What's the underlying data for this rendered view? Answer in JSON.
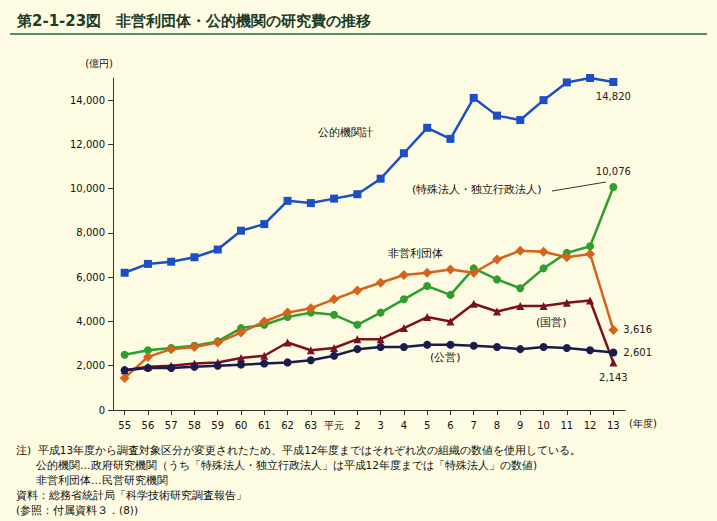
{
  "chart_data": {
    "type": "line",
    "title": "第2-1-23図　非営利団体・公的機関の研究費の推移",
    "y_label": "(億円)",
    "x_label": "(年度)",
    "categories": [
      "55",
      "56",
      "57",
      "58",
      "59",
      "60",
      "61",
      "62",
      "63",
      "平元",
      "2",
      "3",
      "4",
      "5",
      "6",
      "7",
      "8",
      "9",
      "10",
      "11",
      "12",
      "13"
    ],
    "series": [
      {
        "name": "公的機関計",
        "color": "#1c4fc4",
        "marker": "square",
        "values": [
          6200,
          6600,
          6700,
          6900,
          7250,
          8100,
          8400,
          9450,
          9350,
          9550,
          9750,
          10450,
          11600,
          12750,
          12250,
          14100,
          13300,
          13100,
          14000,
          14800,
          15000,
          14820
        ]
      },
      {
        "name": "(特殊法人・独立行政法人)",
        "color": "#2e9e2e",
        "marker": "circle",
        "values": [
          2500,
          2700,
          2800,
          2900,
          3100,
          3700,
          3850,
          4200,
          4400,
          4300,
          3850,
          4400,
          5000,
          5600,
          5200,
          6400,
          5900,
          5500,
          6400,
          7100,
          7400,
          10076
        ]
      },
      {
        "name": "非営利団体",
        "color": "#d4631c",
        "marker": "diamond",
        "values": [
          1450,
          2400,
          2750,
          2850,
          3050,
          3500,
          4000,
          4400,
          4600,
          5000,
          5400,
          5750,
          6100,
          6200,
          6350,
          6200,
          6800,
          7200,
          7150,
          6900,
          7050,
          3616
        ]
      },
      {
        "name": "(国営)",
        "color": "#7a1020",
        "marker": "triangle",
        "values": [
          1800,
          1950,
          2000,
          2100,
          2150,
          2350,
          2450,
          3050,
          2700,
          2800,
          3200,
          3200,
          3700,
          4200,
          4000,
          4800,
          4450,
          4700,
          4700,
          4850,
          4950,
          2143
        ]
      },
      {
        "name": "(公営)",
        "color": "#1b1b4d",
        "marker": "circle",
        "values": [
          1800,
          1900,
          1900,
          1950,
          2000,
          2050,
          2100,
          2150,
          2250,
          2450,
          2750,
          2850,
          2850,
          2950,
          2950,
          2900,
          2850,
          2750,
          2850,
          2800,
          2700,
          2601
        ]
      }
    ],
    "annotations": [
      {
        "text": "14,820",
        "series": "公的機関計",
        "x": "13",
        "y": 14820
      },
      {
        "text": "10,076",
        "series": "(特殊法人・独立行政法人)",
        "x": "13",
        "y": 10076
      },
      {
        "text": "3,616",
        "series": "非営利団体",
        "x": "13",
        "y": 3616
      },
      {
        "text": "2,601",
        "series": "(公営)",
        "x": "13",
        "y": 2601
      },
      {
        "text": "2,143",
        "series": "(国営)",
        "x": "13",
        "y": 2143
      }
    ],
    "notes": [
      "注)  平成13年度から調査対象区分が変更されたため、平成12年度まではそれぞれ次の組織の数値を使用している。",
      "      公的機関…政府研究機関（うち「特殊法人・独立行政法人」は平成12年度までは「特殊法人」の数値)",
      "      非営利団体…民営研究機関",
      "資料：総務省統計局「科学技術研究調査報告」",
      "(参照：付属資料３．(8))"
    ],
    "ylim": [
      0,
      15000
    ],
    "yticks": [
      0,
      {
        "value": 2000,
        "label": "2,000"
      },
      {
        "value": 4000,
        "label": "4,000"
      },
      {
        "value": 6000,
        "label": "6,000"
      },
      {
        "value": 8000,
        "label": "8,000"
      },
      {
        "value": 10000,
        "label": "10,000"
      },
      {
        "value": 12000,
        "label": "12,000"
      },
      {
        "value": 14000,
        "label": "14,000"
      }
    ],
    "grid": false,
    "tick_labels": true
  }
}
